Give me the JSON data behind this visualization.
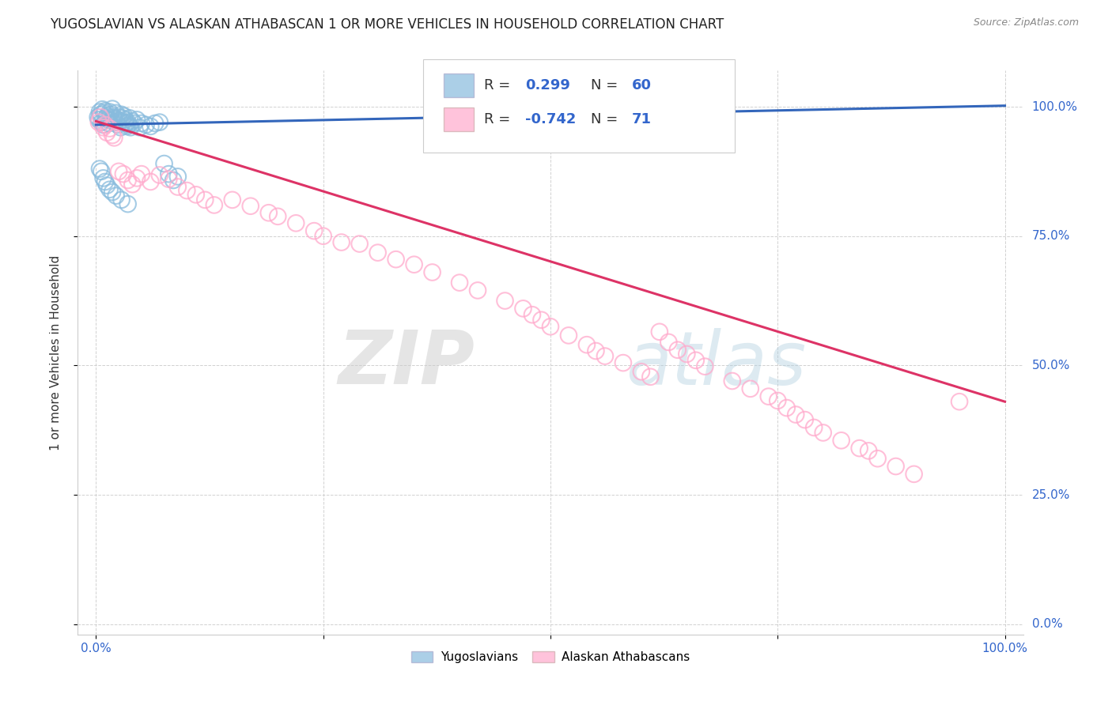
{
  "title": "YUGOSLAVIAN VS ALASKAN ATHABASCAN 1 OR MORE VEHICLES IN HOUSEHOLD CORRELATION CHART",
  "source_text": "Source: ZipAtlas.com",
  "ylabel": "1 or more Vehicles in Household",
  "xlabel": "",
  "xlim": [
    -0.02,
    1.02
  ],
  "ylim": [
    -0.02,
    1.07
  ],
  "xticks": [
    0.0,
    0.25,
    0.5,
    0.75,
    1.0
  ],
  "yticks": [
    0.0,
    0.25,
    0.5,
    0.75,
    1.0
  ],
  "xticklabels": [
    "0.0%",
    "",
    "",
    "",
    "100.0%"
  ],
  "yticklabels_right": [
    "0.0%",
    "25.0%",
    "50.0%",
    "75.0%",
    "100.0%"
  ],
  "blue_R": 0.299,
  "blue_N": 60,
  "pink_R": -0.742,
  "pink_N": 71,
  "blue_color": "#88bbdd",
  "pink_color": "#ffaacc",
  "blue_line_color": "#3366bb",
  "pink_line_color": "#dd3366",
  "watermark_zip": "ZIP",
  "watermark_atlas": "atlas",
  "legend_label_blue": "Yugoslavians",
  "legend_label_pink": "Alaskan Athabascans",
  "blue_line_y_start": 0.965,
  "blue_line_y_end": 1.002,
  "pink_line_y_start": 0.972,
  "pink_line_y_end": 0.43,
  "blue_scatter_x": [
    0.002,
    0.003,
    0.004,
    0.005,
    0.006,
    0.007,
    0.008,
    0.009,
    0.01,
    0.011,
    0.012,
    0.013,
    0.014,
    0.015,
    0.016,
    0.017,
    0.018,
    0.019,
    0.02,
    0.021,
    0.022,
    0.023,
    0.024,
    0.025,
    0.026,
    0.027,
    0.028,
    0.029,
    0.03,
    0.031,
    0.032,
    0.033,
    0.034,
    0.035,
    0.036,
    0.037,
    0.038,
    0.04,
    0.042,
    0.045,
    0.048,
    0.05,
    0.055,
    0.06,
    0.065,
    0.07,
    0.075,
    0.08,
    0.085,
    0.09,
    0.004,
    0.006,
    0.008,
    0.01,
    0.012,
    0.015,
    0.018,
    0.022,
    0.028,
    0.035
  ],
  "blue_scatter_y": [
    0.98,
    0.975,
    0.99,
    0.985,
    0.97,
    0.995,
    0.965,
    0.988,
    0.992,
    0.978,
    0.982,
    0.975,
    0.968,
    0.99,
    0.985,
    0.973,
    0.996,
    0.98,
    0.977,
    0.97,
    0.988,
    0.975,
    0.965,
    0.98,
    0.973,
    0.96,
    0.985,
    0.978,
    0.97,
    0.982,
    0.975,
    0.968,
    0.962,
    0.97,
    0.965,
    0.978,
    0.96,
    0.972,
    0.968,
    0.975,
    0.96,
    0.968,
    0.965,
    0.962,
    0.968,
    0.97,
    0.89,
    0.87,
    0.858,
    0.865,
    0.88,
    0.875,
    0.862,
    0.855,
    0.848,
    0.84,
    0.835,
    0.828,
    0.82,
    0.812
  ],
  "pink_scatter_x": [
    0.003,
    0.005,
    0.008,
    0.01,
    0.012,
    0.015,
    0.018,
    0.02,
    0.025,
    0.03,
    0.035,
    0.04,
    0.045,
    0.05,
    0.06,
    0.07,
    0.08,
    0.09,
    0.1,
    0.11,
    0.12,
    0.13,
    0.15,
    0.17,
    0.19,
    0.2,
    0.22,
    0.24,
    0.25,
    0.27,
    0.29,
    0.31,
    0.33,
    0.35,
    0.37,
    0.4,
    0.42,
    0.45,
    0.47,
    0.48,
    0.49,
    0.5,
    0.52,
    0.54,
    0.55,
    0.56,
    0.58,
    0.6,
    0.61,
    0.62,
    0.63,
    0.64,
    0.65,
    0.66,
    0.67,
    0.7,
    0.72,
    0.74,
    0.75,
    0.76,
    0.77,
    0.78,
    0.79,
    0.8,
    0.82,
    0.84,
    0.85,
    0.86,
    0.88,
    0.9,
    0.95
  ],
  "pink_scatter_y": [
    0.97,
    0.98,
    0.96,
    0.965,
    0.95,
    0.958,
    0.945,
    0.94,
    0.875,
    0.87,
    0.858,
    0.85,
    0.862,
    0.87,
    0.855,
    0.868,
    0.86,
    0.845,
    0.838,
    0.83,
    0.82,
    0.81,
    0.82,
    0.808,
    0.795,
    0.788,
    0.775,
    0.76,
    0.75,
    0.738,
    0.735,
    0.718,
    0.705,
    0.695,
    0.68,
    0.66,
    0.645,
    0.625,
    0.61,
    0.598,
    0.588,
    0.575,
    0.558,
    0.54,
    0.528,
    0.518,
    0.505,
    0.488,
    0.478,
    0.565,
    0.545,
    0.53,
    0.522,
    0.51,
    0.498,
    0.47,
    0.455,
    0.44,
    0.432,
    0.418,
    0.405,
    0.395,
    0.38,
    0.37,
    0.355,
    0.34,
    0.335,
    0.32,
    0.305,
    0.29,
    0.43
  ]
}
